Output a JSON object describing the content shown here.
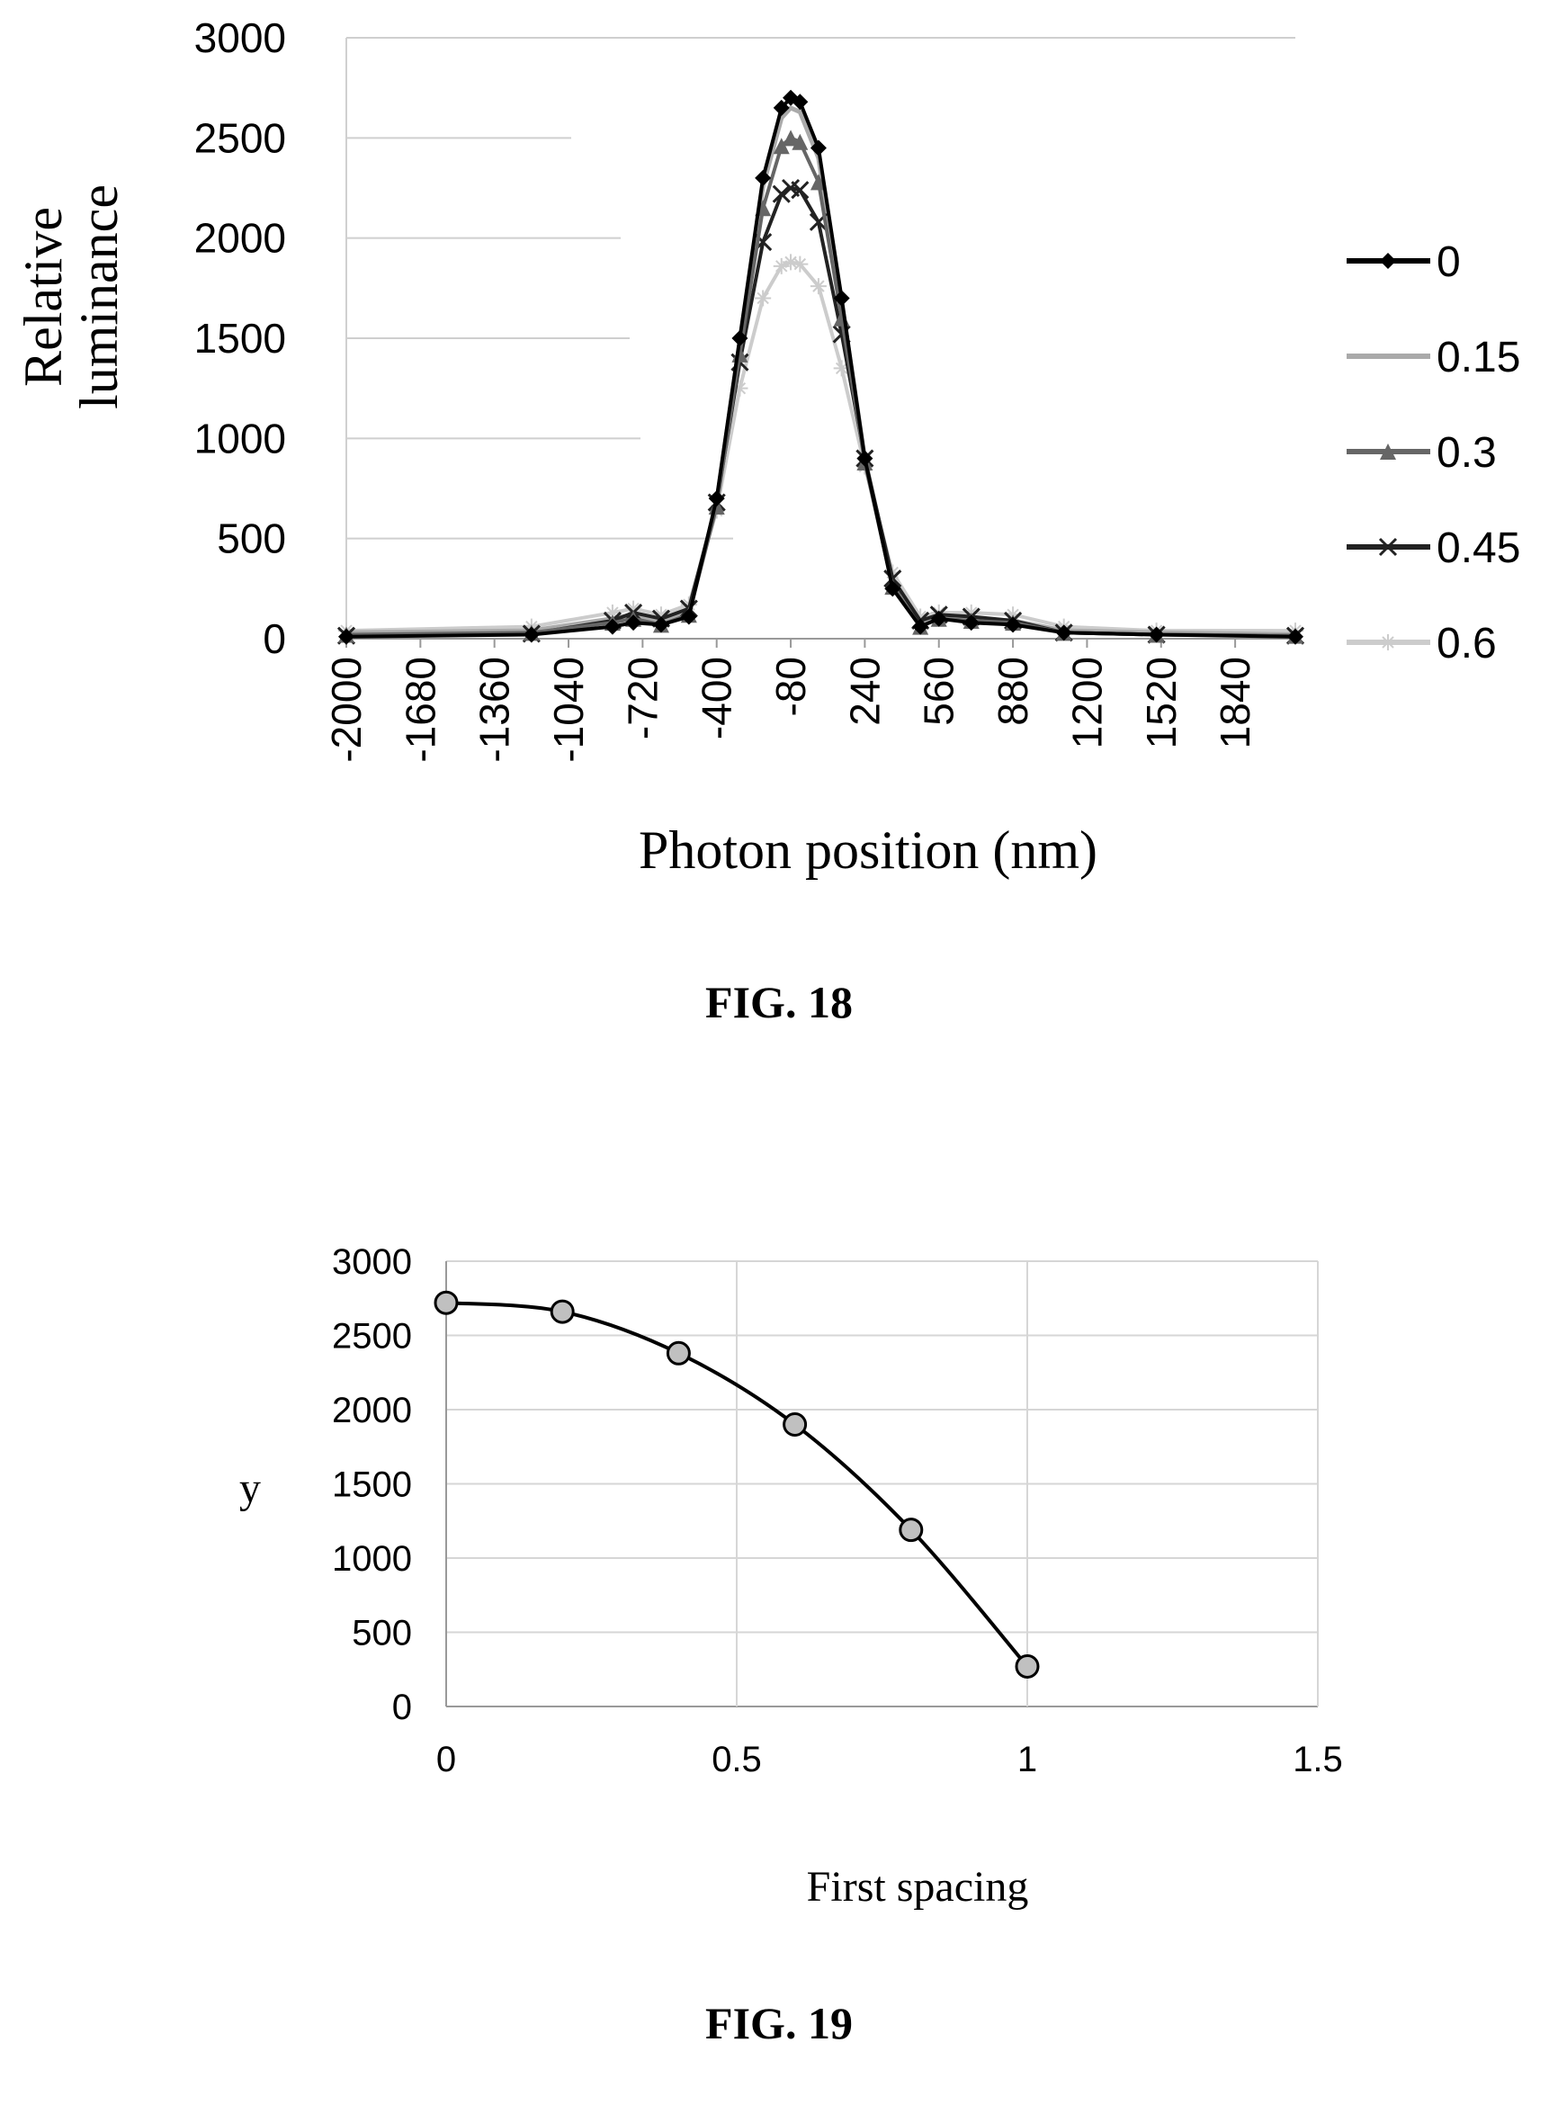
{
  "fig18": {
    "caption": "FIG. 18",
    "chart_data": {
      "type": "line",
      "xlabel": "Photon position (nm)",
      "ylabel_lines": [
        "Relative",
        "luminance"
      ],
      "ylim": [
        0,
        3000
      ],
      "yticks": [
        "0",
        "500",
        "1000",
        "1500",
        "2000",
        "2500",
        "3000"
      ],
      "xticks": [
        "-2000",
        "-1680",
        "-1360",
        "-1040",
        "-720",
        "-400",
        "-80",
        "240",
        "560",
        "880",
        "1200",
        "1520",
        "1840"
      ],
      "xlim": [
        -2000,
        2100
      ],
      "grid": true,
      "legend_position": "right",
      "series": [
        {
          "name": "0",
          "color": "#000000",
          "marker": "diamond",
          "peak": 2700,
          "sigma": 245,
          "side_lobe": 60,
          "x": [
            -2000,
            -1200,
            -850,
            -760,
            -640,
            -520,
            -400,
            -300,
            -200,
            -120,
            -80,
            -40,
            40,
            140,
            240,
            360,
            480,
            560,
            700,
            880,
            1100,
            1500,
            2100
          ],
          "y": [
            10,
            20,
            60,
            80,
            70,
            110,
            700,
            1500,
            2300,
            2650,
            2700,
            2680,
            2450,
            1700,
            900,
            250,
            60,
            100,
            80,
            70,
            30,
            20,
            10
          ]
        },
        {
          "name": "0.15",
          "color": "#aaaaaa",
          "marker": "none",
          "peak": 2650,
          "sigma": 250,
          "side_lobe": 80,
          "x": [
            -2000,
            -1200,
            -850,
            -760,
            -640,
            -520,
            -400,
            -300,
            -200,
            -120,
            -80,
            -40,
            40,
            140,
            240,
            360,
            480,
            560,
            700,
            880,
            1100,
            1500,
            2100
          ],
          "y": [
            30,
            40,
            100,
            120,
            80,
            130,
            680,
            1480,
            2260,
            2600,
            2650,
            2630,
            2400,
            1680,
            900,
            270,
            70,
            110,
            100,
            90,
            40,
            30,
            20
          ]
        },
        {
          "name": "0.3",
          "color": "#666666",
          "marker": "triangle",
          "peak": 2500,
          "sigma": 255,
          "side_lobe": 70,
          "x": [
            -2000,
            -1200,
            -850,
            -760,
            -640,
            -520,
            -400,
            -300,
            -200,
            -120,
            -80,
            -40,
            40,
            140,
            240,
            360,
            480,
            560,
            700,
            880,
            1100,
            1500,
            2100
          ],
          "y": [
            20,
            30,
            80,
            100,
            70,
            120,
            660,
            1420,
            2150,
            2460,
            2500,
            2480,
            2280,
            1600,
            880,
            260,
            60,
            100,
            90,
            80,
            30,
            20,
            15
          ]
        },
        {
          "name": "0.45",
          "color": "#222222",
          "marker": "cross",
          "peak": 2250,
          "sigma": 265,
          "side_lobe": 90,
          "x": [
            -2000,
            -1200,
            -850,
            -760,
            -640,
            -520,
            -400,
            -300,
            -200,
            -120,
            -80,
            -40,
            40,
            140,
            240,
            360,
            480,
            560,
            700,
            880,
            1100,
            1500,
            2100
          ],
          "y": [
            15,
            25,
            90,
            130,
            100,
            150,
            680,
            1380,
            1980,
            2220,
            2250,
            2240,
            2080,
            1520,
            900,
            300,
            90,
            120,
            110,
            90,
            30,
            20,
            15
          ]
        },
        {
          "name": "0.6",
          "color": "#cccccc",
          "marker": "star",
          "peak": 1880,
          "sigma": 285,
          "side_lobe": 110,
          "x": [
            -2000,
            -1200,
            -850,
            -760,
            -640,
            -520,
            -400,
            -300,
            -200,
            -120,
            -80,
            -40,
            40,
            140,
            240,
            360,
            480,
            560,
            700,
            880,
            1100,
            1500,
            2100
          ],
          "y": [
            40,
            60,
            130,
            150,
            120,
            170,
            640,
            1250,
            1700,
            1860,
            1880,
            1870,
            1760,
            1350,
            860,
            330,
            110,
            130,
            130,
            120,
            60,
            40,
            40
          ]
        }
      ]
    }
  },
  "fig19": {
    "caption": "FIG. 19",
    "chart_data": {
      "type": "scatter",
      "xlabel": "First spacing",
      "ylabel": "y",
      "xlim": [
        0,
        1.5
      ],
      "ylim": [
        0,
        3000
      ],
      "xticks": [
        "0",
        "0.5",
        "1",
        "1.5"
      ],
      "yticks": [
        "0",
        "500",
        "1000",
        "1500",
        "2000",
        "2500",
        "3000"
      ],
      "grid": true,
      "marker_color": "#c0c0c0",
      "line_color": "#000000",
      "x": [
        0,
        0.2,
        0.4,
        0.6,
        0.8,
        1.0
      ],
      "y": [
        2720,
        2660,
        2380,
        1900,
        1190,
        270
      ]
    }
  }
}
